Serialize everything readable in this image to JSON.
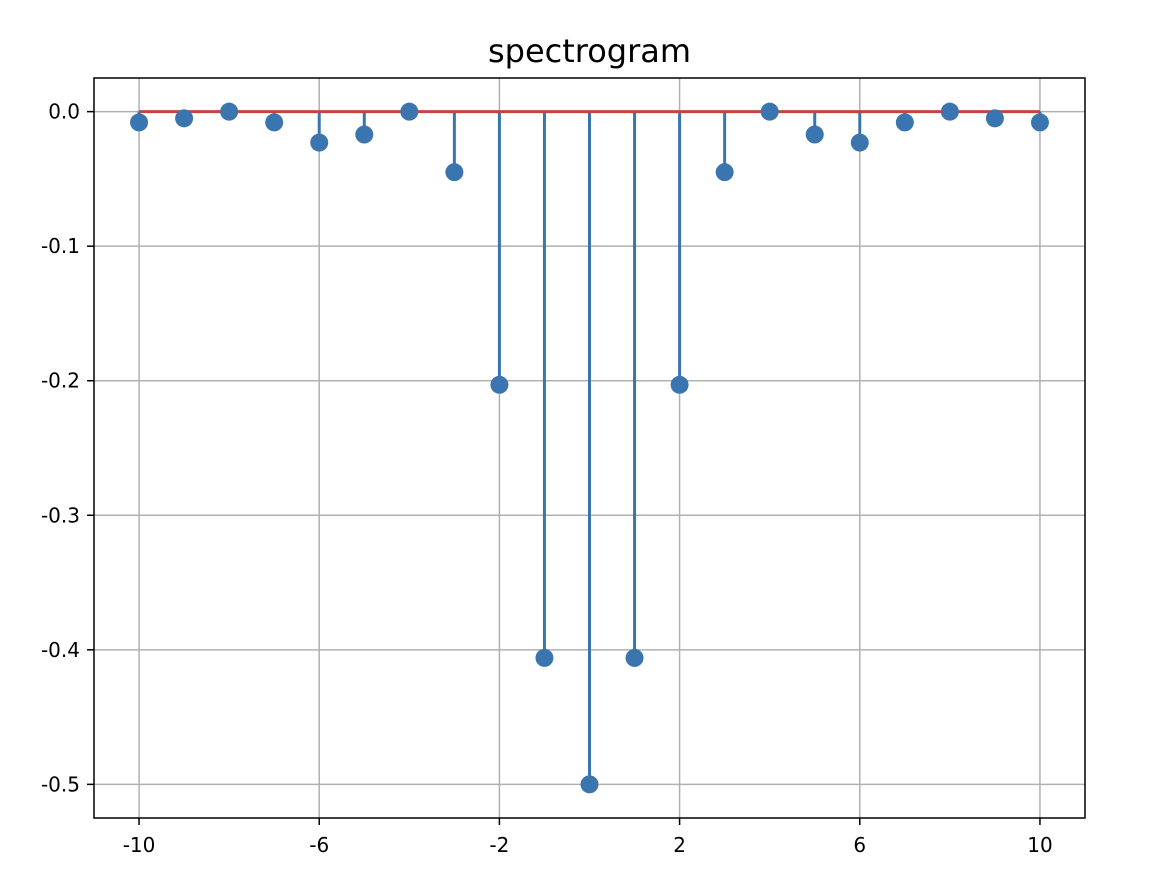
{
  "chart_data": {
    "type": "stem",
    "title": "spectrogram",
    "xlabel": "",
    "ylabel": "",
    "x": [
      -10,
      -9,
      -8,
      -7,
      -6,
      -5,
      -4,
      -3,
      -2,
      -1,
      0,
      1,
      2,
      3,
      4,
      5,
      6,
      7,
      8,
      9,
      10
    ],
    "values": [
      -0.008,
      -0.005,
      0.0,
      -0.008,
      -0.023,
      -0.017,
      0.0,
      -0.045,
      -0.203,
      -0.406,
      -0.5,
      -0.406,
      -0.203,
      -0.045,
      0.0,
      -0.017,
      -0.023,
      -0.008,
      0.0,
      -0.005,
      -0.008
    ],
    "baseline": 0.0,
    "xlim": [
      -11,
      11
    ],
    "ylim": [
      -0.525,
      0.025
    ],
    "xticks": [
      -10,
      -6,
      -2,
      2,
      6,
      10
    ],
    "xtick_labels": [
      "-10",
      "-6",
      "-2",
      "2",
      "6",
      "10"
    ],
    "yticks": [
      0.0,
      -0.1,
      -0.2,
      -0.3,
      -0.4,
      -0.5
    ],
    "ytick_labels": [
      "0.0",
      "-0.1",
      "-0.2",
      "-0.3",
      "-0.4",
      "-0.5"
    ],
    "grid": true,
    "colors": {
      "stem": "#3a75b0",
      "marker": "#3a75b0",
      "baseline": "#c44540",
      "grid": "#b0b0b0",
      "axes": "#000000"
    }
  }
}
